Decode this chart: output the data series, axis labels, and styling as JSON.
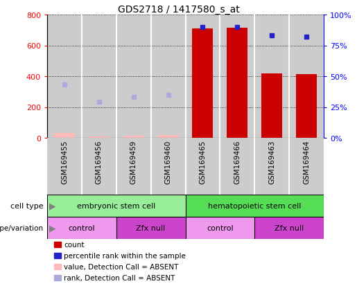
{
  "title": "GDS2718 / 1417580_s_at",
  "samples": [
    "GSM169455",
    "GSM169456",
    "GSM169459",
    "GSM169460",
    "GSM169465",
    "GSM169466",
    "GSM169463",
    "GSM169464"
  ],
  "count_values": [
    30,
    8,
    15,
    20,
    710,
    715,
    420,
    415
  ],
  "count_absent": [
    true,
    true,
    true,
    true,
    false,
    false,
    false,
    false
  ],
  "rank_values": [
    43,
    29,
    33,
    35,
    90,
    90,
    83,
    82
  ],
  "rank_absent": [
    true,
    true,
    true,
    true,
    false,
    false,
    false,
    false
  ],
  "left_ylim": [
    0,
    800
  ],
  "right_ylim": [
    0,
    100
  ],
  "left_yticks": [
    0,
    200,
    400,
    600,
    800
  ],
  "right_yticks": [
    0,
    25,
    50,
    75,
    100
  ],
  "right_yticklabels": [
    "0%",
    "25%",
    "50%",
    "75%",
    "100%"
  ],
  "bar_color_present": "#cc0000",
  "bar_color_absent": "#ffbbbb",
  "rank_color_present": "#2222cc",
  "rank_color_absent": "#aaaadd",
  "cell_type_groups": [
    {
      "label": "embryonic stem cell",
      "start": 0,
      "end": 4,
      "color": "#99ee99"
    },
    {
      "label": "hematopoietic stem cell",
      "start": 4,
      "end": 8,
      "color": "#55dd55"
    }
  ],
  "genotype_groups": [
    {
      "label": "control",
      "start": 0,
      "end": 2,
      "color": "#ee99ee"
    },
    {
      "label": "Zfx null",
      "start": 2,
      "end": 4,
      "color": "#cc44cc"
    },
    {
      "label": "control",
      "start": 4,
      "end": 6,
      "color": "#ee99ee"
    },
    {
      "label": "Zfx null",
      "start": 6,
      "end": 8,
      "color": "#cc44cc"
    }
  ],
  "legend_items": [
    {
      "label": "count",
      "color": "#cc0000"
    },
    {
      "label": "percentile rank within the sample",
      "color": "#2222cc"
    },
    {
      "label": "value, Detection Call = ABSENT",
      "color": "#ffbbbb"
    },
    {
      "label": "rank, Detection Call = ABSENT",
      "color": "#aaaadd"
    }
  ],
  "left_ytick_color": "red",
  "right_ytick_color": "blue",
  "grid_linestyle": "dotted",
  "sample_bg_color": "#cccccc",
  "fig_width": 5.15,
  "fig_height": 4.14,
  "fig_dpi": 100
}
